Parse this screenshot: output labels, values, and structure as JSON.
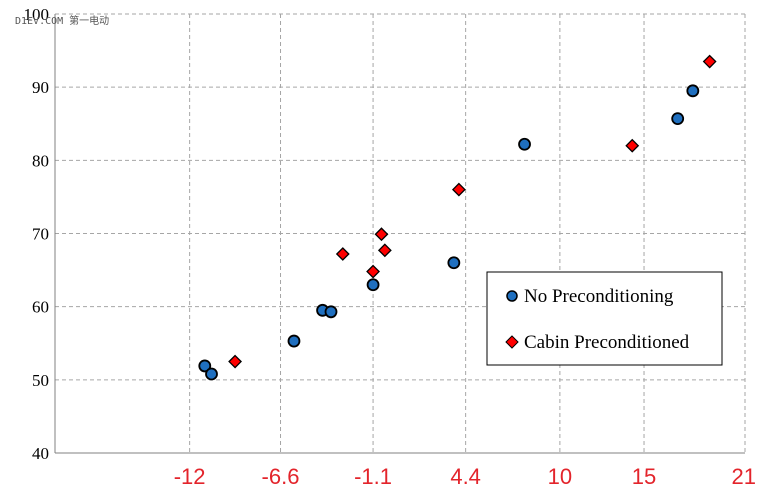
{
  "watermark": {
    "text": "D1EV.COM 第一电动"
  },
  "colors": {
    "x_tick_label": "#e3242b",
    "y_tick_label": "#000000",
    "grid": "#a6a6a6",
    "series_1_fill": "#1f6fbf",
    "series_2_fill": "#ff0000",
    "marker_stroke": "#000000"
  },
  "chart_data": {
    "type": "scatter",
    "title": "",
    "xlabel": "",
    "ylabel": "",
    "grid": true,
    "legend_position": "right",
    "xlim": [
      -20,
      21
    ],
    "ylim": [
      40,
      100
    ],
    "x_ticks": [
      -12,
      -6.6,
      -1.1,
      4.4,
      10,
      15,
      21
    ],
    "x_tick_labels": [
      "-12",
      "-6.6",
      "-1.1",
      "4.4",
      "10",
      "15",
      "21"
    ],
    "y_ticks": [
      40,
      50,
      60,
      70,
      80,
      90,
      100
    ],
    "y_tick_labels": [
      "40",
      "50",
      "60",
      "70",
      "80",
      "90",
      "100"
    ],
    "series": [
      {
        "name": "No Preconditioning",
        "marker": "circle",
        "color": "#1f6fbf",
        "points": [
          {
            "x": -11.1,
            "y": 51.9
          },
          {
            "x": -10.7,
            "y": 50.8
          },
          {
            "x": -5.8,
            "y": 55.3
          },
          {
            "x": -4.1,
            "y": 59.5
          },
          {
            "x": -3.6,
            "y": 59.3
          },
          {
            "x": -1.1,
            "y": 63.0
          },
          {
            "x": 3.7,
            "y": 66.0
          },
          {
            "x": 7.9,
            "y": 82.2
          },
          {
            "x": 17.0,
            "y": 85.7
          },
          {
            "x": 17.9,
            "y": 89.5
          }
        ]
      },
      {
        "name": "Cabin Preconditioned",
        "marker": "diamond",
        "color": "#ff0000",
        "points": [
          {
            "x": -9.3,
            "y": 52.5
          },
          {
            "x": -2.9,
            "y": 67.2
          },
          {
            "x": -1.1,
            "y": 64.8
          },
          {
            "x": -0.6,
            "y": 69.9
          },
          {
            "x": -0.4,
            "y": 67.7
          },
          {
            "x": 4.0,
            "y": 76.0
          },
          {
            "x": 14.3,
            "y": 82.0
          },
          {
            "x": 18.9,
            "y": 93.5
          }
        ]
      }
    ]
  }
}
